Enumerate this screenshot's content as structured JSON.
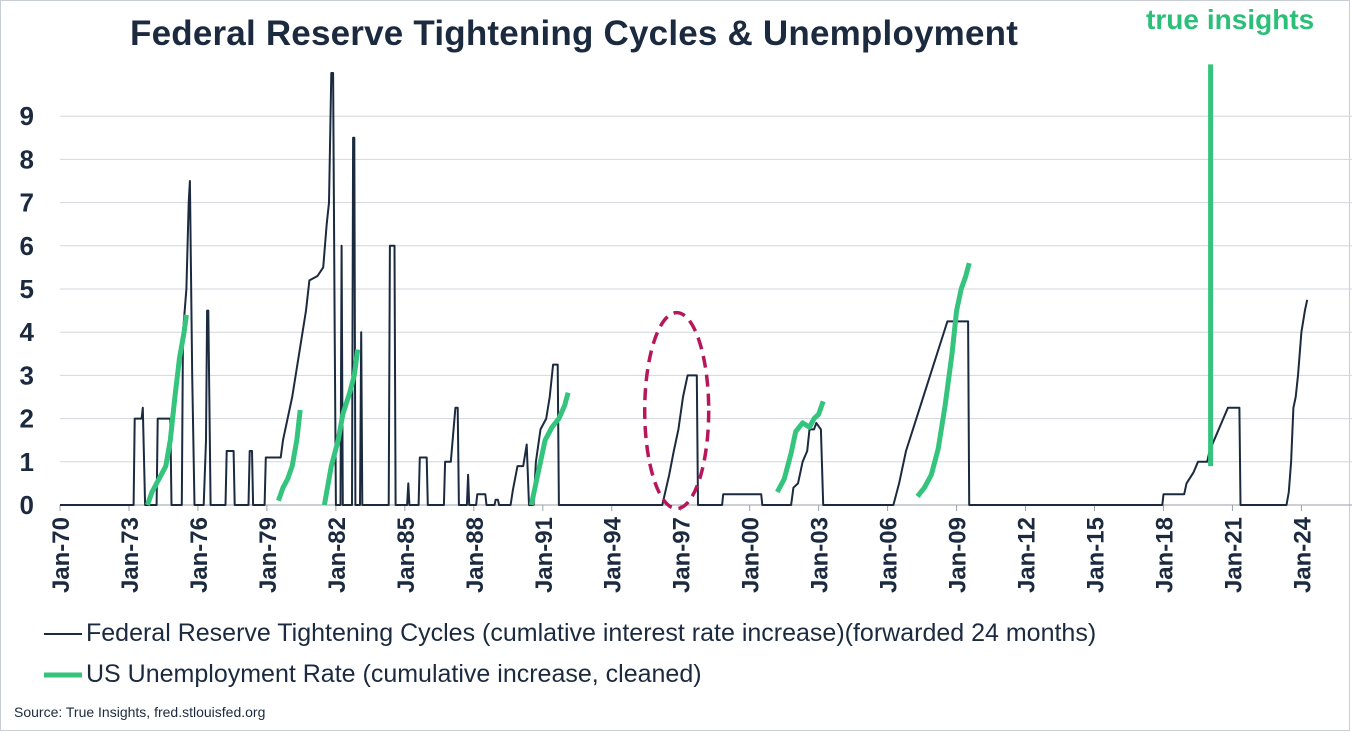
{
  "chart_data": {
    "type": "line",
    "title": "Federal Reserve Tightening Cycles & Unemployment",
    "xlim": [
      1970.0,
      2026.2
    ],
    "ylim": [
      0,
      10
    ],
    "yticks": [
      0,
      1,
      2,
      3,
      4,
      5,
      6,
      7,
      8,
      9
    ],
    "xticks": [
      {
        "label": "Jan-70",
        "x": 1970
      },
      {
        "label": "Jan-73",
        "x": 1973
      },
      {
        "label": "Jan-76",
        "x": 1976
      },
      {
        "label": "Jan-79",
        "x": 1979
      },
      {
        "label": "Jan-82",
        "x": 1982
      },
      {
        "label": "Jan-85",
        "x": 1985
      },
      {
        "label": "Jan-88",
        "x": 1988
      },
      {
        "label": "Jan-91",
        "x": 1991
      },
      {
        "label": "Jan-94",
        "x": 1994
      },
      {
        "label": "Jan-97",
        "x": 1997
      },
      {
        "label": "Jan-00",
        "x": 2000
      },
      {
        "label": "Jan-03",
        "x": 2003
      },
      {
        "label": "Jan-06",
        "x": 2006
      },
      {
        "label": "Jan-09",
        "x": 2009
      },
      {
        "label": "Jan-12",
        "x": 2012
      },
      {
        "label": "Jan-15",
        "x": 2015
      },
      {
        "label": "Jan-18",
        "x": 2018
      },
      {
        "label": "Jan-21",
        "x": 2021
      },
      {
        "label": "Jan-24",
        "x": 2024
      }
    ],
    "grid": "horizontal",
    "legend_position": "bottom",
    "series": [
      {
        "name": "Federal Reserve Tightening Cycles (cumlative interest rate increase)(forwarded 24 months)",
        "color": "#1b2a3f",
        "line_width": 2,
        "points": [
          [
            1970.0,
            0
          ],
          [
            1973.2,
            0
          ],
          [
            1973.25,
            2
          ],
          [
            1973.55,
            2
          ],
          [
            1973.6,
            2.25
          ],
          [
            1973.7,
            0
          ],
          [
            1974.2,
            0
          ],
          [
            1974.25,
            2
          ],
          [
            1974.8,
            2
          ],
          [
            1974.85,
            0
          ],
          [
            1975.3,
            0
          ],
          [
            1975.35,
            4
          ],
          [
            1975.5,
            5
          ],
          [
            1975.6,
            7
          ],
          [
            1975.65,
            7.5
          ],
          [
            1975.75,
            3
          ],
          [
            1975.85,
            0
          ],
          [
            1976.25,
            0
          ],
          [
            1976.35,
            1.5
          ],
          [
            1976.4,
            4.5
          ],
          [
            1976.45,
            4.5
          ],
          [
            1976.55,
            0
          ],
          [
            1977.2,
            0
          ],
          [
            1977.25,
            1.25
          ],
          [
            1977.55,
            1.25
          ],
          [
            1977.6,
            0
          ],
          [
            1978.2,
            0
          ],
          [
            1978.25,
            1.25
          ],
          [
            1978.35,
            1.25
          ],
          [
            1978.4,
            0
          ],
          [
            1978.9,
            0
          ],
          [
            1978.95,
            1.1
          ],
          [
            1979.6,
            1.1
          ],
          [
            1979.7,
            1.5
          ],
          [
            1979.9,
            2
          ],
          [
            1980.1,
            2.5
          ],
          [
            1980.4,
            3.5
          ],
          [
            1980.7,
            4.5
          ],
          [
            1980.85,
            5.2
          ],
          [
            1981.2,
            5.3
          ],
          [
            1981.45,
            5.5
          ],
          [
            1981.6,
            6.5
          ],
          [
            1981.7,
            7
          ],
          [
            1981.8,
            10
          ],
          [
            1981.88,
            10
          ],
          [
            1981.95,
            4
          ],
          [
            1982.0,
            0
          ],
          [
            1982.2,
            0
          ],
          [
            1982.25,
            6
          ],
          [
            1982.3,
            0
          ],
          [
            1982.7,
            0
          ],
          [
            1982.75,
            8.5
          ],
          [
            1982.8,
            8.5
          ],
          [
            1982.85,
            0
          ],
          [
            1983.05,
            0
          ],
          [
            1983.1,
            4
          ],
          [
            1983.15,
            0
          ],
          [
            1984.3,
            0
          ],
          [
            1984.35,
            6
          ],
          [
            1984.55,
            6
          ],
          [
            1984.6,
            0
          ],
          [
            1985.1,
            0
          ],
          [
            1985.15,
            0.5
          ],
          [
            1985.2,
            0
          ],
          [
            1985.6,
            0
          ],
          [
            1985.65,
            1.1
          ],
          [
            1985.95,
            1.1
          ],
          [
            1986.0,
            0
          ],
          [
            1986.7,
            0
          ],
          [
            1986.75,
            1
          ],
          [
            1987.0,
            1
          ],
          [
            1987.2,
            2.25
          ],
          [
            1987.3,
            2.25
          ],
          [
            1987.35,
            0
          ],
          [
            1987.7,
            0
          ],
          [
            1987.75,
            0.7
          ],
          [
            1987.8,
            0
          ],
          [
            1988.1,
            0
          ],
          [
            1988.15,
            0.25
          ],
          [
            1988.5,
            0.25
          ],
          [
            1988.55,
            0
          ],
          [
            1988.9,
            0
          ],
          [
            1988.95,
            0.12
          ],
          [
            1989.05,
            0.12
          ],
          [
            1989.1,
            0
          ],
          [
            1989.6,
            0
          ],
          [
            1989.7,
            0.35
          ],
          [
            1989.9,
            0.9
          ],
          [
            1990.15,
            0.9
          ],
          [
            1990.3,
            1.4
          ],
          [
            1990.4,
            0
          ],
          [
            1990.6,
            0
          ],
          [
            1990.7,
            1
          ],
          [
            1990.9,
            1.75
          ],
          [
            1991.15,
            2
          ],
          [
            1991.3,
            2.5
          ],
          [
            1991.45,
            3.25
          ],
          [
            1991.65,
            3.25
          ],
          [
            1991.7,
            0
          ],
          [
            1996.2,
            0
          ],
          [
            1996.5,
            0.7
          ],
          [
            1996.7,
            1.25
          ],
          [
            1996.9,
            1.75
          ],
          [
            1997.1,
            2.5
          ],
          [
            1997.3,
            3
          ],
          [
            1997.7,
            3
          ],
          [
            1997.75,
            0
          ],
          [
            1998.8,
            0
          ],
          [
            1998.85,
            0.25
          ],
          [
            1999.2,
            0.25
          ],
          [
            2000.5,
            0.25
          ],
          [
            2000.55,
            0
          ],
          [
            2001.8,
            0
          ],
          [
            2001.9,
            0.4
          ],
          [
            2002.1,
            0.5
          ],
          [
            2002.3,
            1
          ],
          [
            2002.5,
            1.25
          ],
          [
            2002.6,
            1.75
          ],
          [
            2002.8,
            1.75
          ],
          [
            2002.9,
            1.9
          ],
          [
            2003.1,
            1.75
          ],
          [
            2003.2,
            0
          ],
          [
            2006.25,
            0
          ],
          [
            2006.5,
            0.5
          ],
          [
            2006.8,
            1.25
          ],
          [
            2007.1,
            1.75
          ],
          [
            2007.4,
            2.25
          ],
          [
            2007.7,
            2.75
          ],
          [
            2008.0,
            3.25
          ],
          [
            2008.3,
            3.75
          ],
          [
            2008.6,
            4.25
          ],
          [
            2009.5,
            4.25
          ],
          [
            2009.55,
            0
          ],
          [
            2017.95,
            0
          ],
          [
            2018.0,
            0.25
          ],
          [
            2018.9,
            0.25
          ],
          [
            2019.0,
            0.5
          ],
          [
            2019.3,
            0.75
          ],
          [
            2019.5,
            1
          ],
          [
            2019.9,
            1
          ],
          [
            2020.0,
            1.25
          ],
          [
            2020.2,
            1.5
          ],
          [
            2020.4,
            1.75
          ],
          [
            2020.6,
            2
          ],
          [
            2020.8,
            2.25
          ],
          [
            2021.3,
            2.25
          ],
          [
            2021.35,
            0
          ],
          [
            2023.35,
            0
          ],
          [
            2023.45,
            0.3
          ],
          [
            2023.55,
            1
          ],
          [
            2023.65,
            2.25
          ],
          [
            2023.75,
            2.5
          ],
          [
            2023.85,
            3
          ],
          [
            2024.0,
            4
          ],
          [
            2024.15,
            4.5
          ],
          [
            2024.25,
            4.75
          ]
        ]
      },
      {
        "name": "US Unemployment Rate (cumulative increase, cleaned)",
        "color": "#34c47d",
        "line_width": 5,
        "segments": [
          [
            [
              1973.8,
              0
            ],
            [
              1974.0,
              0.3
            ],
            [
              1974.2,
              0.5
            ],
            [
              1974.4,
              0.7
            ],
            [
              1974.6,
              0.9
            ],
            [
              1974.8,
              1.5
            ],
            [
              1975.0,
              2.5
            ],
            [
              1975.2,
              3.4
            ],
            [
              1975.4,
              4.0
            ],
            [
              1975.5,
              4.4
            ]
          ],
          [
            [
              1979.5,
              0.1
            ],
            [
              1979.7,
              0.4
            ],
            [
              1979.9,
              0.6
            ],
            [
              1980.1,
              0.9
            ],
            [
              1980.3,
              1.5
            ],
            [
              1980.45,
              2.2
            ]
          ],
          [
            [
              1981.5,
              0
            ],
            [
              1981.8,
              0.9
            ],
            [
              1982.1,
              1.5
            ],
            [
              1982.3,
              2.1
            ],
            [
              1982.6,
              2.6
            ],
            [
              1982.8,
              3.0
            ],
            [
              1982.95,
              3.6
            ]
          ],
          [
            [
              1990.5,
              0
            ],
            [
              1990.7,
              0.5
            ],
            [
              1990.9,
              1.0
            ],
            [
              1991.1,
              1.5
            ],
            [
              1991.4,
              1.8
            ],
            [
              1991.7,
              2.0
            ],
            [
              1991.95,
              2.3
            ],
            [
              1992.1,
              2.6
            ]
          ],
          [
            [
              2001.2,
              0.3
            ],
            [
              2001.5,
              0.6
            ],
            [
              2001.8,
              1.2
            ],
            [
              2002.0,
              1.7
            ],
            [
              2002.3,
              1.9
            ],
            [
              2002.6,
              1.8
            ],
            [
              2002.8,
              2.0
            ],
            [
              2003.0,
              2.1
            ],
            [
              2003.2,
              2.4
            ]
          ],
          [
            [
              2007.3,
              0.2
            ],
            [
              2007.6,
              0.4
            ],
            [
              2007.9,
              0.7
            ],
            [
              2008.2,
              1.3
            ],
            [
              2008.5,
              2.3
            ],
            [
              2008.8,
              3.5
            ],
            [
              2009.0,
              4.5
            ],
            [
              2009.2,
              5.0
            ],
            [
              2009.4,
              5.3
            ],
            [
              2009.55,
              5.6
            ]
          ],
          [
            [
              2020.05,
              0.9
            ],
            [
              2020.05,
              10.2
            ]
          ]
        ]
      }
    ],
    "annotations": [
      {
        "type": "ellipse",
        "style": "dashed",
        "color": "#b5175a",
        "around_x": 1997,
        "around_y": 2
      }
    ]
  },
  "brand": {
    "word1": "true",
    "word2": "insights",
    "color": "#2bbf7a"
  },
  "legend": {
    "item1": "Federal Reserve Tightening Cycles (cumlative interest rate increase)(forwarded 24 months)",
    "item2": "US Unemployment Rate (cumulative increase, cleaned)"
  },
  "source": "Source: True Insights, fred.stlouisfed.org"
}
